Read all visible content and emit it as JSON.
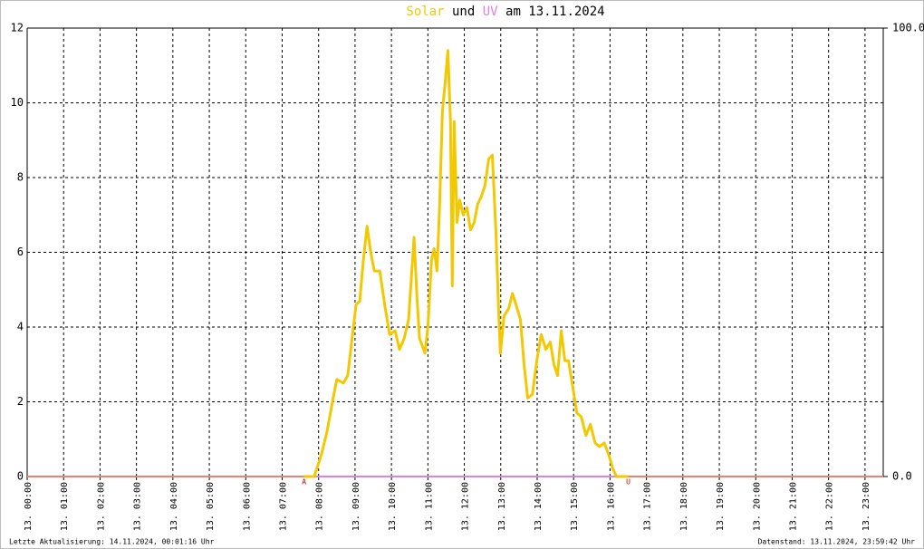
{
  "chart_data": {
    "type": "line",
    "title_words": [
      "und",
      "am 13.11.2024"
    ],
    "series": [
      {
        "name": "Solar",
        "color": "#f2c800",
        "x": [
          7.6,
          7.88,
          8.08,
          8.23,
          8.38,
          8.5,
          8.68,
          8.8,
          8.93,
          9.03,
          9.13,
          9.23,
          9.33,
          9.43,
          9.53,
          9.68,
          9.83,
          9.95,
          10.1,
          10.22,
          10.35,
          10.47,
          10.62,
          10.7,
          10.77,
          10.92,
          11.0,
          11.1,
          11.17,
          11.25,
          11.32,
          11.4,
          11.47,
          11.55,
          11.62,
          11.67,
          11.72,
          11.8,
          11.87,
          11.97,
          12.07,
          12.17,
          12.27,
          12.37,
          12.47,
          12.57,
          12.67,
          12.77,
          12.87,
          12.94,
          12.99,
          13.09,
          13.22,
          13.32,
          13.42,
          13.54,
          13.64,
          13.74,
          13.87,
          13.99,
          14.11,
          14.24,
          14.36,
          14.46,
          14.56,
          14.66,
          14.76,
          14.86,
          14.96,
          15.09,
          15.21,
          15.34,
          15.46,
          15.59,
          15.71,
          15.84,
          15.96,
          16.08,
          16.18,
          16.5
        ],
        "values": [
          0,
          0,
          0.6,
          1.2,
          2.0,
          2.6,
          2.5,
          2.7,
          3.8,
          4.6,
          4.7,
          5.8,
          6.7,
          6.0,
          5.5,
          5.5,
          4.5,
          3.8,
          3.9,
          3.4,
          3.7,
          4.2,
          6.4,
          4.8,
          3.7,
          3.3,
          4.0,
          5.8,
          6.1,
          5.5,
          7.2,
          9.8,
          10.5,
          11.4,
          9.5,
          5.1,
          9.5,
          6.8,
          7.4,
          7.0,
          7.2,
          6.6,
          6.8,
          7.3,
          7.5,
          7.8,
          8.5,
          8.6,
          6.5,
          4.5,
          3.3,
          4.3,
          4.5,
          4.9,
          4.6,
          4.2,
          3.0,
          2.1,
          2.2,
          3.1,
          3.8,
          3.4,
          3.6,
          3.0,
          2.7,
          3.9,
          3.1,
          3.1,
          2.5,
          1.7,
          1.6,
          1.1,
          1.4,
          0.9,
          0.8,
          0.9,
          0.6,
          0.2,
          0,
          0
        ]
      },
      {
        "name": "UV",
        "color": "#e080e0",
        "axis": "y2",
        "x": [
          7.6,
          16.5
        ],
        "values": [
          0,
          0
        ]
      }
    ],
    "xlim": [
      0,
      23.5
    ],
    "xticks": [
      {
        "value": 0,
        "label": "13. 00:00"
      },
      {
        "value": 1,
        "label": "13. 01:00"
      },
      {
        "value": 2,
        "label": "13. 02:00"
      },
      {
        "value": 3,
        "label": "13. 03:00"
      },
      {
        "value": 4,
        "label": "13. 04:00"
      },
      {
        "value": 5,
        "label": "13. 05:00"
      },
      {
        "value": 6,
        "label": "13. 06:00"
      },
      {
        "value": 7,
        "label": "13. 07:00"
      },
      {
        "value": 8,
        "label": "13. 08:00"
      },
      {
        "value": 9,
        "label": "13. 09:00"
      },
      {
        "value": 10,
        "label": "13. 10:00"
      },
      {
        "value": 11,
        "label": "13. 11:00"
      },
      {
        "value": 12,
        "label": "13. 12:00"
      },
      {
        "value": 13,
        "label": "13. 13:00"
      },
      {
        "value": 14,
        "label": "13. 14:00"
      },
      {
        "value": 15,
        "label": "13. 15:00"
      },
      {
        "value": 16,
        "label": "13. 16:00"
      },
      {
        "value": 17,
        "label": "13. 17:00"
      },
      {
        "value": 18,
        "label": "13. 18:00"
      },
      {
        "value": 19,
        "label": "13. 19:00"
      },
      {
        "value": 20,
        "label": "13. 20:00"
      },
      {
        "value": 21,
        "label": "13. 21:00"
      },
      {
        "value": 22,
        "label": "13. 22:00"
      },
      {
        "value": 23,
        "label": "13. 23:00"
      }
    ],
    "ylim": [
      0,
      12
    ],
    "yticks": [
      0,
      2,
      4,
      6,
      8,
      10,
      12
    ],
    "y2lim": [
      0,
      100
    ],
    "y2ticks": [
      {
        "value": 0,
        "label": "0.0"
      },
      {
        "value": 100,
        "label": "100.0"
      }
    ],
    "grid": true,
    "annotations": [
      {
        "x": 7.6,
        "text": "A"
      },
      {
        "x": 16.5,
        "text": "U"
      }
    ],
    "footer_left": "Letzte Aktualisierung: 14.11.2024, 00:01:16 Uhr",
    "footer_right": "Datenstand: 13.11.2024, 23:59:42 Uhr"
  }
}
